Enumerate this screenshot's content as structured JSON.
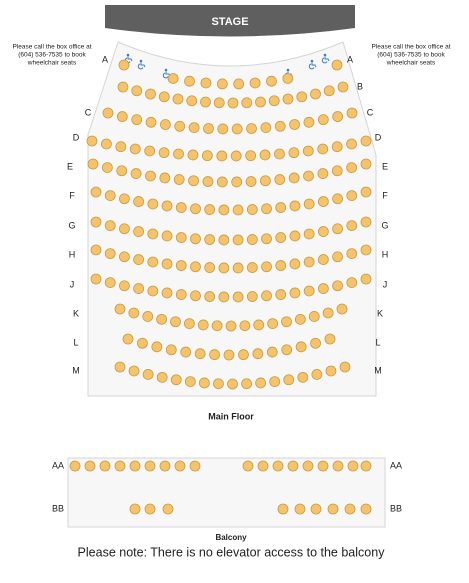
{
  "stage": "STAGE",
  "notes": {
    "left": [
      "Please call the box office at",
      "(604) 536-7535 to book",
      "wheelchair seats"
    ],
    "right": [
      "Please call the box office at",
      "(604) 536-7535 to book",
      "wheelchair seats"
    ]
  },
  "main_floor": {
    "rows": [
      "A",
      "B",
      "C",
      "D",
      "E",
      "F",
      "G",
      "H",
      "J",
      "K",
      "L",
      "M"
    ],
    "label": "Main Floor"
  },
  "balcony": {
    "rows": [
      "AA",
      "BB"
    ],
    "label": "Balcony"
  },
  "footer_note": "Please note: There is no elevator access to the balcony"
}
